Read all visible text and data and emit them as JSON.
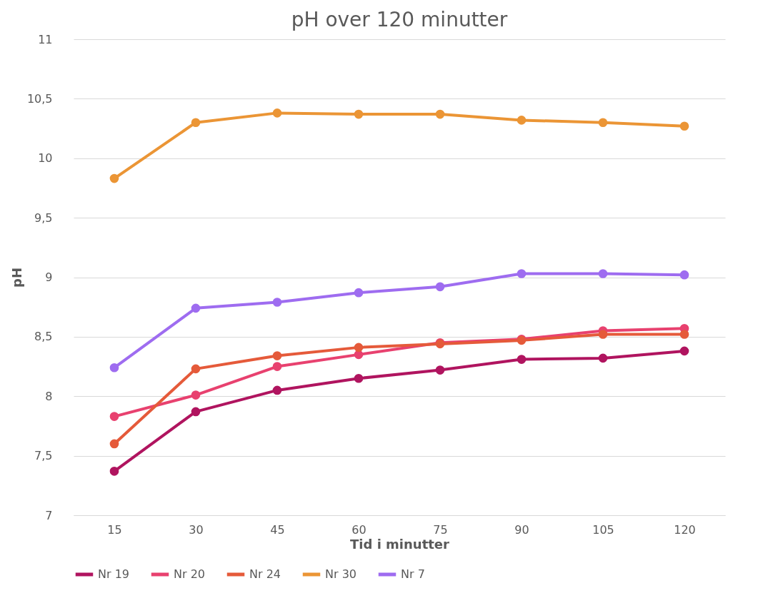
{
  "chart_data": {
    "type": "line",
    "title": "pH over 120 minutter",
    "xlabel": "Tid i minutter",
    "ylabel": "pH",
    "categories": [
      "15",
      "30",
      "45",
      "60",
      "75",
      "90",
      "105",
      "120"
    ],
    "series": [
      {
        "name": "Nr 19",
        "color": "#b0145f",
        "values": [
          7.37,
          7.87,
          8.05,
          8.15,
          8.22,
          8.31,
          8.32,
          8.38
        ]
      },
      {
        "name": "Nr 20",
        "color": "#e8416f",
        "values": [
          7.83,
          8.01,
          8.25,
          8.35,
          8.45,
          8.48,
          8.55,
          8.57
        ]
      },
      {
        "name": "Nr 24",
        "color": "#e55a3a",
        "values": [
          7.6,
          8.23,
          8.34,
          8.41,
          8.44,
          8.47,
          8.52,
          8.52
        ]
      },
      {
        "name": "Nr 30",
        "color": "#eb9535",
        "values": [
          9.83,
          10.3,
          10.38,
          10.37,
          10.37,
          10.32,
          10.3,
          10.27
        ]
      },
      {
        "name": "Nr 7",
        "color": "#9e6cf0",
        "values": [
          8.24,
          8.74,
          8.79,
          8.87,
          8.92,
          9.03,
          9.03,
          9.02
        ]
      }
    ],
    "ylim": [
      7,
      11
    ],
    "yticks": [
      7,
      {
        "value": 7.5,
        "label": "7,5"
      },
      8,
      {
        "value": 8.5,
        "label": "8,5"
      },
      9,
      {
        "value": 9.5,
        "label": "9,5"
      },
      10,
      {
        "value": 10.5,
        "label": "10,5"
      },
      11
    ],
    "grid": "y",
    "legend": "bottom",
    "marker": "circle",
    "line_style": "solid"
  }
}
